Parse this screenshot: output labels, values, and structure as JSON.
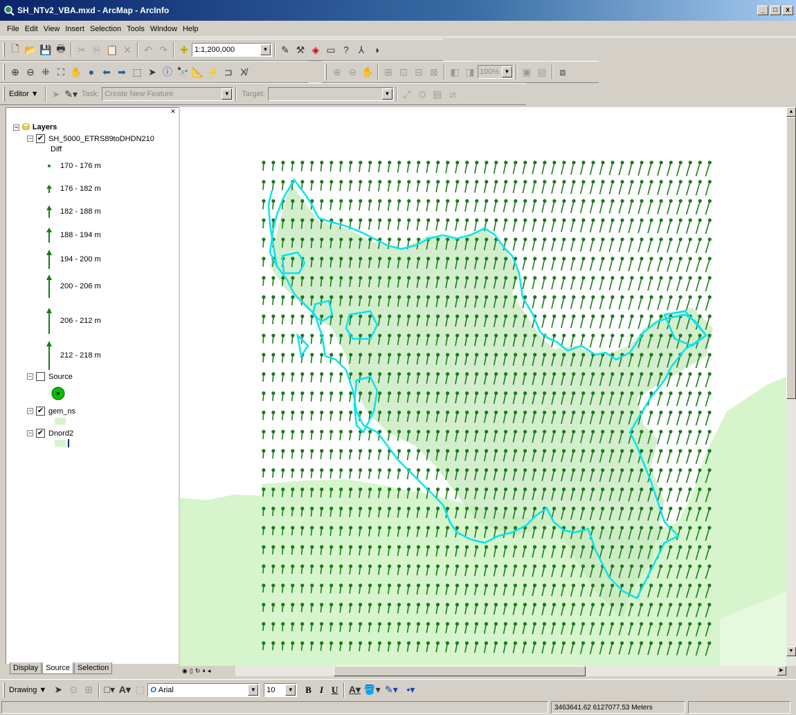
{
  "window": {
    "title": "SH_NTv2_VBA.mxd - ArcMap - ArcInfo",
    "minimize": "_",
    "maximize": "□",
    "close": "x"
  },
  "menu": [
    "File",
    "Edit",
    "View",
    "Insert",
    "Selection",
    "Tools",
    "Window",
    "Help"
  ],
  "standard_toolbar": {
    "scale": "1:1,200,000"
  },
  "layout_toolbar": {
    "zoom": "100%"
  },
  "editor_toolbar": {
    "editor_label": "Editor ▼",
    "task_label": "Task:",
    "task_value": "Create New Feature",
    "target_label": "Target:",
    "target_value": ""
  },
  "toc": {
    "root": "Layers",
    "layers": [
      {
        "name": "SH_5000_ETRS89toDHDN210",
        "checked": true,
        "field": "Diff",
        "classes": [
          "170 - 176 m",
          "176 - 182 m",
          "182 - 188 m",
          "188 - 194 m",
          "194 - 200 m",
          "200 - 206 m",
          "206 - 212 m",
          "212 - 218 m"
        ]
      },
      {
        "name": "Source",
        "checked": false
      },
      {
        "name": "gem_ns",
        "checked": true
      },
      {
        "name": "Dnord2",
        "checked": true
      }
    ],
    "tabs": [
      "Display",
      "Source",
      "Selection"
    ]
  },
  "drawing_toolbar": {
    "drawing_label": "Drawing ▼",
    "font": "Arial",
    "size": "10",
    "bold": "B",
    "italic": "I",
    "underline": "U"
  },
  "status": {
    "coords": "3463641.62  6127077.53 Meters"
  },
  "colors": {
    "arrow": "#1a7a1a",
    "boundary": "#00e5ee",
    "land": "#d6f5cc",
    "titlebar": "#0a246a"
  }
}
